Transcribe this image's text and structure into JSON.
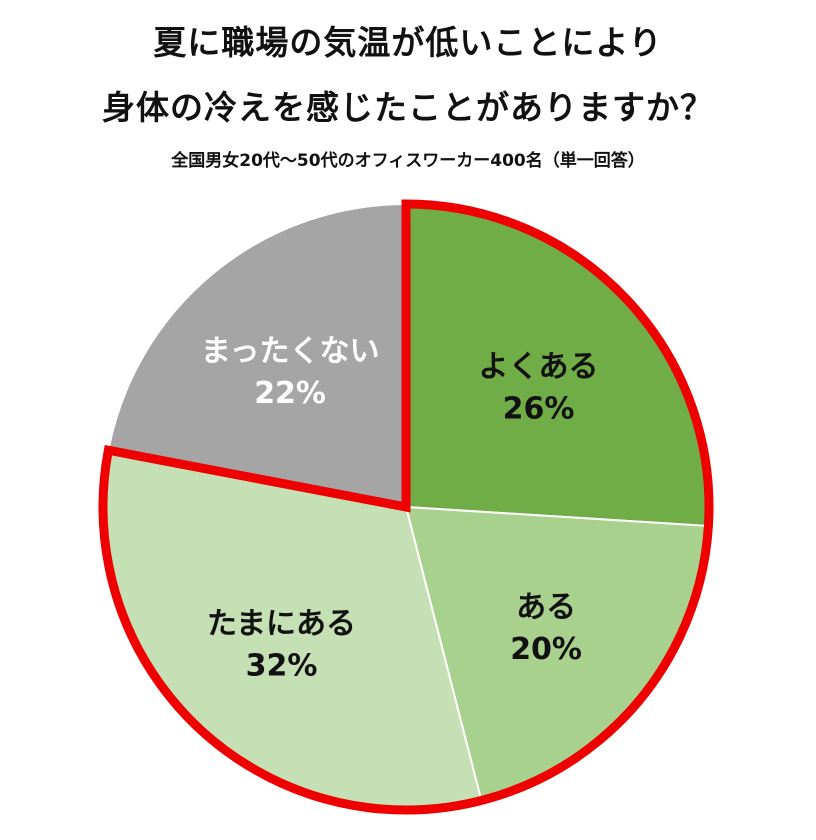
{
  "chart_data": {
    "type": "pie",
    "title": [
      "夏に職場の気温が低いことにより",
      "身体の冷えを感じたことがありますか？"
    ],
    "subtitle": "全国男女20代～50代のオフィスワーカー400名（単一回答）",
    "unit": "%",
    "slices": [
      {
        "label": "よくある",
        "value": 26,
        "display": "26%",
        "color": "#70ad47",
        "text_color": "#111111"
      },
      {
        "label": "ある",
        "value": 20,
        "display": "20%",
        "color": "#a9d18e",
        "text_color": "#111111"
      },
      {
        "label": "たまにある",
        "value": 32,
        "display": "32%",
        "color": "#c5e0b4",
        "text_color": "#111111"
      },
      {
        "label": "まったくない",
        "value": 22,
        "display": "22%",
        "color": "#a5a5a5",
        "text_color": "#ffffff"
      }
    ],
    "start": "12 o'clock",
    "direction": "clockwise",
    "highlight": {
      "slices": [
        "よくある",
        "ある",
        "たまにある"
      ],
      "outline_color": "#ee0000"
    },
    "legend": "none"
  }
}
